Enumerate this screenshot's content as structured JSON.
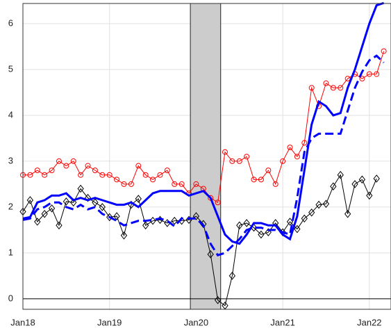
{
  "chart_data": {
    "type": "line",
    "x": [
      0,
      1,
      2,
      3,
      4,
      5,
      6,
      7,
      8,
      9,
      10,
      11,
      12,
      13,
      14,
      15,
      16,
      17,
      18,
      19,
      20,
      21,
      22,
      23,
      24,
      25,
      26,
      27,
      28,
      29,
      30,
      31,
      32,
      33,
      34,
      35,
      36,
      37,
      38,
      39,
      40,
      41,
      42,
      43,
      44,
      45,
      46,
      47,
      48,
      49,
      50
    ],
    "series": [
      {
        "color": "#ff0000",
        "marker": "circle",
        "dash": false,
        "width": 1,
        "values": [
          2.7,
          2.7,
          2.8,
          2.7,
          2.8,
          3.0,
          2.9,
          3.0,
          2.7,
          2.9,
          2.8,
          2.7,
          2.7,
          2.6,
          2.5,
          2.5,
          2.9,
          2.7,
          2.6,
          2.7,
          2.8,
          2.5,
          2.5,
          2.3,
          2.5,
          2.4,
          2.2,
          2.1,
          3.2,
          3.0,
          3.0,
          3.1,
          2.6,
          2.6,
          2.8,
          2.5,
          3.0,
          3.3,
          3.1,
          3.4,
          4.6,
          4.2,
          4.7,
          4.6,
          4.6,
          4.8,
          4.9,
          4.8,
          4.9,
          4.9,
          5.4
        ]
      },
      {
        "color": "#000000",
        "marker": "diamond",
        "dash": false,
        "width": 1,
        "values": [
          1.9,
          2.15,
          1.68,
          1.85,
          1.97,
          1.6,
          2.12,
          2.1,
          2.4,
          2.2,
          2.1,
          2.0,
          1.78,
          1.8,
          1.38,
          2.05,
          2.18,
          1.6,
          1.7,
          1.72,
          1.65,
          1.7,
          1.7,
          1.72,
          1.8,
          1.63,
          0.97,
          -0.03,
          -0.15,
          0.5,
          1.6,
          1.65,
          1.55,
          1.4,
          1.45,
          1.65,
          1.45,
          1.68,
          1.52,
          1.75,
          1.88,
          2.05,
          2.07,
          2.45,
          2.7,
          1.85,
          2.5,
          2.6,
          2.25,
          2.62,
          null
        ]
      },
      {
        "color": "#0000ff",
        "marker": "none",
        "dash": false,
        "width": 3,
        "values": [
          1.75,
          1.78,
          2.1,
          2.15,
          2.25,
          2.25,
          2.3,
          2.15,
          2.2,
          2.15,
          2.2,
          2.15,
          2.1,
          2.05,
          2.05,
          2.1,
          2.0,
          2.15,
          2.3,
          2.35,
          2.35,
          2.35,
          2.35,
          2.25,
          2.3,
          2.35,
          2.2,
          1.8,
          1.4,
          1.25,
          1.2,
          1.4,
          1.65,
          1.65,
          1.6,
          1.6,
          1.4,
          1.3,
          1.8,
          2.8,
          3.8,
          4.3,
          4.2,
          4.0,
          4.05,
          4.6,
          5.0,
          5.5,
          6.0,
          6.4,
          6.45
        ]
      },
      {
        "color": "#0000ff",
        "marker": "none",
        "dash": true,
        "width": 3,
        "values": [
          1.72,
          1.75,
          1.95,
          2.0,
          2.1,
          2.1,
          2.0,
          1.95,
          2.05,
          1.95,
          2.0,
          1.85,
          1.78,
          1.7,
          1.6,
          1.65,
          1.7,
          1.7,
          1.72,
          1.75,
          1.7,
          1.58,
          1.75,
          1.75,
          1.75,
          1.6,
          1.2,
          0.95,
          1.0,
          1.15,
          1.3,
          1.5,
          1.55,
          1.55,
          1.5,
          1.5,
          1.45,
          1.4,
          2.2,
          3.2,
          3.5,
          3.6,
          3.6,
          3.6,
          3.6,
          4.1,
          4.6,
          4.95,
          5.2,
          5.3,
          5.15
        ]
      }
    ],
    "shade": [
      23.2,
      27.4
    ],
    "xlim": [
      0,
      51
    ],
    "xticks": [
      {
        "value": 0,
        "label": "Jan18"
      },
      {
        "value": 12,
        "label": "Jan19"
      },
      {
        "value": 24,
        "label": "Jan20"
      },
      {
        "value": 36,
        "label": "Jan21"
      },
      {
        "value": 48,
        "label": "Jan22"
      }
    ],
    "ylim": [
      -0.23,
      6.44
    ],
    "yticks": [
      0,
      1,
      2,
      3,
      4,
      5,
      6
    ],
    "grid": true
  }
}
